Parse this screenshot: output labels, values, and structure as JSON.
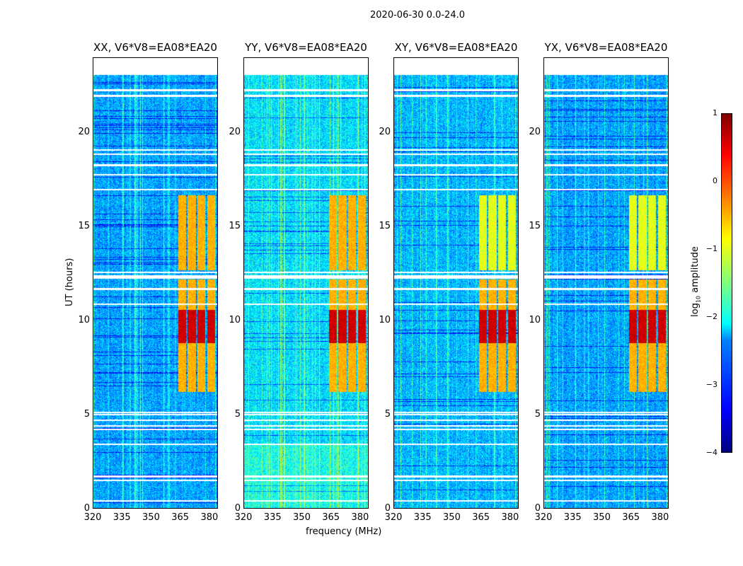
{
  "suptitle": "2020-06-30 0.0-24.0",
  "chart_data": {
    "type": "heatmap",
    "title": "2020-06-30 0.0-24.0",
    "xlabel": "frequency (MHz)",
    "ylabel": "UT (hours)",
    "xlim": [
      320,
      384.4
    ],
    "ylim": [
      0,
      24
    ],
    "xticks": [
      "320",
      "335",
      "350",
      "365",
      "380"
    ],
    "yticks": [
      "0",
      "5",
      "10",
      "15",
      "20"
    ],
    "panels": [
      {
        "title": "XX, V6*V8=EA08*EA20",
        "background_level": -2.7
      },
      {
        "title": "YY, V6*V8=EA08*EA20",
        "background_level": -2.4
      },
      {
        "title": "XY, V6*V8=EA08*EA20",
        "background_level": -2.6
      },
      {
        "title": "YX, V6*V8=EA08*EA20",
        "background_level": -2.7
      }
    ],
    "data_time_range_hours": [
      0,
      23.1
    ],
    "rfi_band": {
      "freq_mhz": [
        363,
        383
      ],
      "time_hours": [
        6.2,
        16.7
      ],
      "peak_time_hours": [
        8.8,
        10.6
      ],
      "level": -0.5,
      "peak_level": 0.6
    },
    "flagged_times_hours": [
      0.4,
      1.5,
      1.7,
      3.4,
      4.2,
      4.4,
      4.7,
      5.0,
      5.1,
      10.9,
      11.7,
      12.3,
      12.4,
      12.6,
      17.0,
      17.8,
      18.3,
      18.9,
      19.1,
      22.0,
      22.3
    ],
    "colorbar": {
      "label": "log10 amplitude",
      "label_main": "log",
      "label_sub": "10",
      "label_rest": " amplitude",
      "ticks": [
        "1",
        "0",
        "−1",
        "−2",
        "−3",
        "−4"
      ],
      "range": [
        -4,
        1
      ],
      "colormap": "jet"
    }
  }
}
